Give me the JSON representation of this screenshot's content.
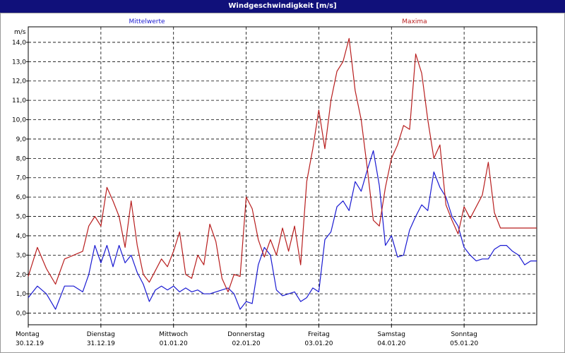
{
  "window": {
    "title": "Windgeschwindigkeit [m/s]"
  },
  "chart_data": {
    "type": "line",
    "unit_label": "m/s",
    "ylim": [
      -0.6,
      14.8
    ],
    "yticks": [
      "0,0",
      "1,0",
      "2,0",
      "3,0",
      "4,0",
      "5,0",
      "6,0",
      "7,0",
      "8,0",
      "9,0",
      "10,0",
      "11,0",
      "12,0",
      "13,0",
      "14,0"
    ],
    "grid": true,
    "days": [
      {
        "day": "Montag",
        "date": "30.12.19"
      },
      {
        "day": "Dienstag",
        "date": "31.12.19"
      },
      {
        "day": "Mittwoch",
        "date": "01.01.20"
      },
      {
        "day": "Donnerstag",
        "date": "02.01.20"
      },
      {
        "day": "Freitag",
        "date": "03.01.20"
      },
      {
        "day": "Samstag",
        "date": "04.01.20"
      },
      {
        "day": "Sonntag",
        "date": "05.01.20"
      }
    ],
    "x_hours_total": 168,
    "series": [
      {
        "name": "Mittelwerte",
        "color": "#1a1ad2",
        "x": [
          0,
          3,
          6,
          9,
          12,
          15,
          18,
          20,
          22,
          24,
          26,
          28,
          30,
          32,
          34,
          36,
          38,
          40,
          42,
          44,
          46,
          48,
          50,
          52,
          54,
          56,
          58,
          60,
          62,
          64,
          66,
          68,
          70,
          72,
          74,
          76,
          78,
          80,
          82,
          84,
          86,
          88,
          90,
          92,
          94,
          96,
          98,
          100,
          102,
          104,
          106,
          108,
          110,
          112,
          114,
          116,
          118,
          120,
          122,
          124,
          126,
          128,
          130,
          132,
          134,
          136,
          138,
          140,
          142,
          144,
          146,
          148,
          150,
          152,
          154,
          156,
          158,
          160,
          162,
          164,
          166,
          168
        ],
        "y": [
          0.8,
          1.4,
          1.0,
          0.2,
          1.4,
          1.4,
          1.1,
          2.0,
          3.5,
          2.6,
          3.5,
          2.4,
          3.5,
          2.6,
          3.0,
          2.1,
          1.5,
          0.6,
          1.2,
          1.4,
          1.2,
          1.4,
          1.1,
          1.3,
          1.1,
          1.2,
          1.0,
          1.0,
          1.1,
          1.2,
          1.3,
          1.0,
          0.2,
          0.6,
          0.5,
          2.5,
          3.4,
          3.0,
          1.2,
          0.9,
          1.0,
          1.1,
          0.6,
          0.8,
          1.3,
          1.1,
          3.8,
          4.2,
          5.5,
          5.8,
          5.3,
          6.8,
          6.3,
          7.4,
          8.4,
          6.6,
          3.5,
          4.0,
          2.9,
          3.0,
          4.3,
          5.0,
          5.6,
          5.3,
          7.3,
          6.5,
          6.0,
          5.0,
          4.5,
          3.4,
          3.0,
          2.7,
          2.8,
          2.8,
          3.3,
          3.5,
          3.5,
          3.2,
          3.0,
          2.5,
          2.7,
          2.7
        ]
      },
      {
        "name": "Maxima",
        "color": "#b81e1e",
        "x": [
          0,
          3,
          6,
          9,
          12,
          15,
          18,
          20,
          22,
          24,
          26,
          28,
          30,
          32,
          34,
          36,
          38,
          40,
          42,
          44,
          46,
          48,
          50,
          52,
          54,
          56,
          58,
          60,
          62,
          64,
          66,
          68,
          70,
          72,
          74,
          76,
          78,
          80,
          82,
          84,
          86,
          88,
          90,
          92,
          94,
          96,
          98,
          100,
          102,
          104,
          106,
          108,
          110,
          112,
          114,
          116,
          118,
          120,
          122,
          124,
          126,
          128,
          130,
          132,
          134,
          136,
          138,
          140,
          142,
          144,
          146,
          148,
          150,
          152,
          154,
          156,
          158,
          160,
          162,
          164,
          166,
          168
        ],
        "y": [
          1.9,
          3.4,
          2.3,
          1.5,
          2.8,
          3.0,
          3.2,
          4.5,
          5.0,
          4.5,
          6.5,
          5.8,
          5.0,
          3.4,
          5.8,
          3.5,
          2.0,
          1.6,
          2.2,
          2.8,
          2.4,
          3.2,
          4.2,
          2.0,
          1.8,
          3.0,
          2.5,
          4.6,
          3.7,
          1.8,
          1.1,
          2.0,
          1.9,
          6.0,
          5.4,
          3.8,
          2.9,
          3.8,
          3.0,
          4.4,
          3.2,
          4.5,
          2.5,
          6.8,
          8.5,
          10.5,
          8.5,
          11.0,
          12.5,
          13.0,
          14.2,
          11.5,
          10.0,
          7.5,
          4.8,
          4.5,
          6.5,
          8.0,
          8.7,
          9.7,
          9.5,
          13.4,
          12.4,
          10.0,
          8.0,
          8.7,
          5.6,
          4.8,
          4.1,
          5.5,
          4.9,
          5.5,
          6.1,
          7.8,
          5.2,
          4.4,
          4.4,
          4.4,
          4.4,
          4.4,
          4.4,
          4.4
        ]
      }
    ]
  }
}
